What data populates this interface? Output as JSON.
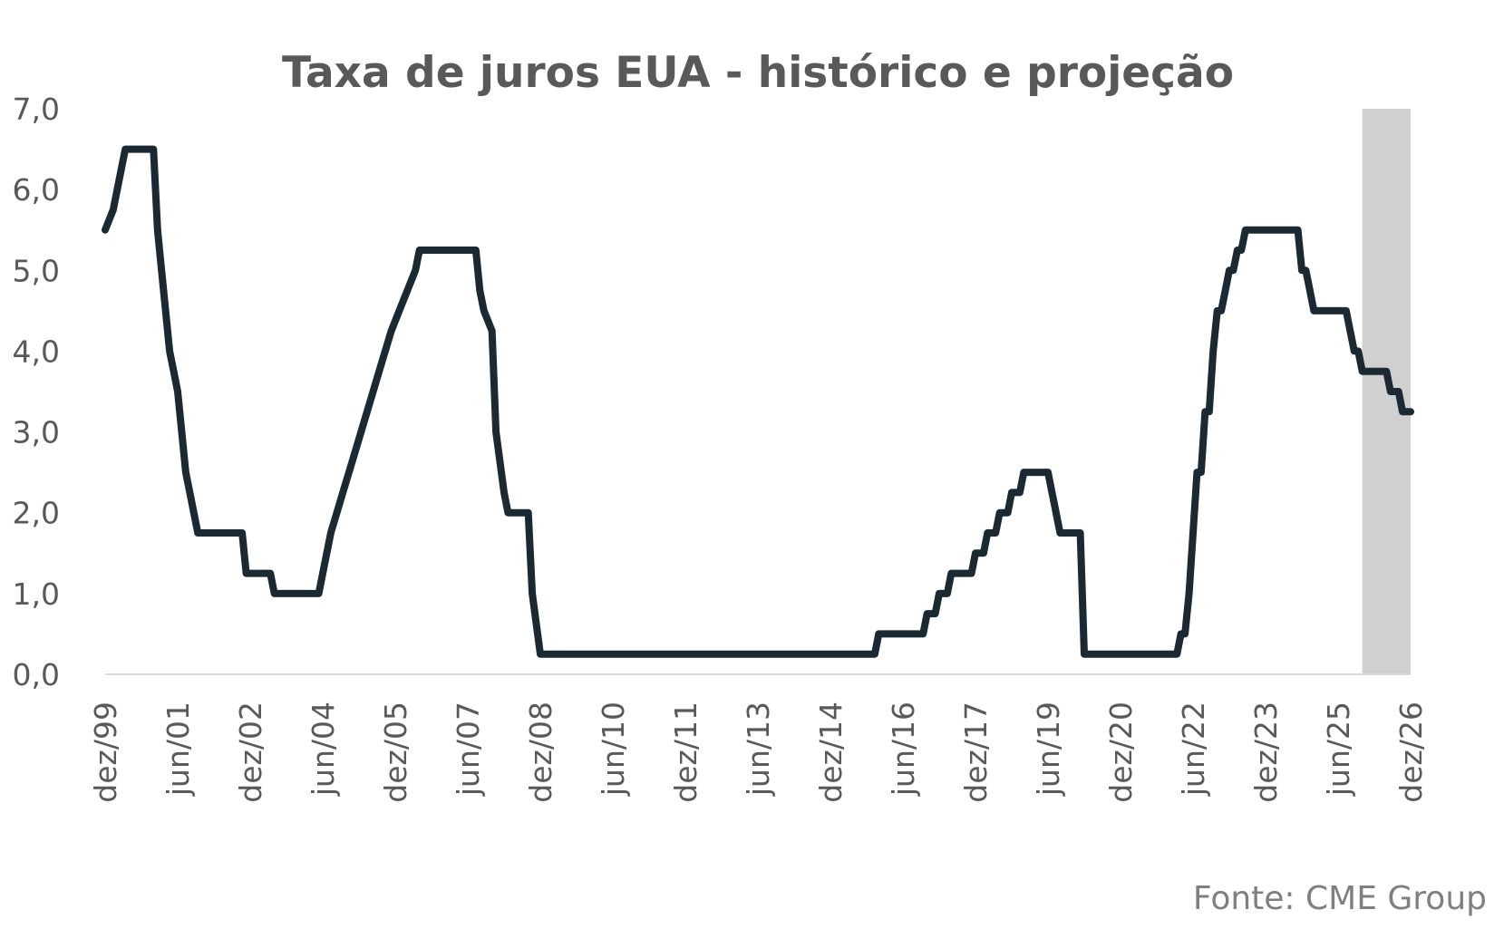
{
  "chart_data": {
    "type": "line",
    "title": "Taxa de juros EUA - histórico e projeção",
    "xlabel": "",
    "ylabel": "",
    "ylim": [
      0,
      7
    ],
    "yticks": [
      "0,0",
      "1,0",
      "2,0",
      "3,0",
      "4,0",
      "5,0",
      "6,0",
      "7,0"
    ],
    "xlim": [
      "1999-12",
      "2026-12"
    ],
    "xticks": [
      "dez/99",
      "jun/01",
      "dez/02",
      "jun/04",
      "dez/05",
      "jun/07",
      "dez/08",
      "jun/10",
      "dez/11",
      "jun/13",
      "dez/14",
      "jun/16",
      "dez/17",
      "jun/19",
      "dez/20",
      "jun/22",
      "dez/23",
      "jun/25",
      "dez/26"
    ],
    "projection_shading": {
      "start": "2025-12",
      "end": "2026-12",
      "color": "#d0d0d0"
    },
    "grid": false,
    "line_color": "#1a2932",
    "series": [
      {
        "points": [
          [
            "1999-12",
            5.5
          ],
          [
            "2000-02",
            5.75
          ],
          [
            "2000-03",
            6.0
          ],
          [
            "2000-05",
            6.5
          ],
          [
            "2000-12",
            6.5
          ],
          [
            "2001-01",
            5.5
          ],
          [
            "2001-02",
            5.0
          ],
          [
            "2001-04",
            4.0
          ],
          [
            "2001-05",
            3.75
          ],
          [
            "2001-06",
            3.5
          ],
          [
            "2001-08",
            2.5
          ],
          [
            "2001-10",
            2.0
          ],
          [
            "2001-11",
            1.75
          ],
          [
            "2002-10",
            1.75
          ],
          [
            "2002-11",
            1.25
          ],
          [
            "2003-05",
            1.25
          ],
          [
            "2003-06",
            1.0
          ],
          [
            "2004-05",
            1.0
          ],
          [
            "2004-06",
            1.25
          ],
          [
            "2004-08",
            1.75
          ],
          [
            "2004-11",
            2.25
          ],
          [
            "2005-02",
            2.75
          ],
          [
            "2005-05",
            3.25
          ],
          [
            "2005-08",
            3.75
          ],
          [
            "2005-11",
            4.25
          ],
          [
            "2006-01",
            4.5
          ],
          [
            "2006-03",
            4.75
          ],
          [
            "2006-05",
            5.0
          ],
          [
            "2006-06",
            5.25
          ],
          [
            "2007-08",
            5.25
          ],
          [
            "2007-09",
            4.75
          ],
          [
            "2007-10",
            4.5
          ],
          [
            "2007-12",
            4.25
          ],
          [
            "2008-01",
            3.0
          ],
          [
            "2008-03",
            2.25
          ],
          [
            "2008-04",
            2.0
          ],
          [
            "2008-09",
            2.0
          ],
          [
            "2008-10",
            1.0
          ],
          [
            "2008-12",
            0.25
          ],
          [
            "2015-11",
            0.25
          ],
          [
            "2015-12",
            0.5
          ],
          [
            "2016-11",
            0.5
          ],
          [
            "2016-12",
            0.75
          ],
          [
            "2017-02",
            0.75
          ],
          [
            "2017-03",
            1.0
          ],
          [
            "2017-05",
            1.0
          ],
          [
            "2017-06",
            1.25
          ],
          [
            "2017-11",
            1.25
          ],
          [
            "2017-12",
            1.5
          ],
          [
            "2018-02",
            1.5
          ],
          [
            "2018-03",
            1.75
          ],
          [
            "2018-05",
            1.75
          ],
          [
            "2018-06",
            2.0
          ],
          [
            "2018-08",
            2.0
          ],
          [
            "2018-09",
            2.25
          ],
          [
            "2018-11",
            2.25
          ],
          [
            "2018-12",
            2.5
          ],
          [
            "2019-06",
            2.5
          ],
          [
            "2019-07",
            2.25
          ],
          [
            "2019-08",
            2.0
          ],
          [
            "2019-09",
            1.75
          ],
          [
            "2020-02",
            1.75
          ],
          [
            "2020-03",
            0.25
          ],
          [
            "2022-02",
            0.25
          ],
          [
            "2022-03",
            0.5
          ],
          [
            "2022-04",
            0.5
          ],
          [
            "2022-05",
            1.0
          ],
          [
            "2022-06",
            1.75
          ],
          [
            "2022-07",
            2.5
          ],
          [
            "2022-08",
            2.5
          ],
          [
            "2022-09",
            3.25
          ],
          [
            "2022-10",
            3.25
          ],
          [
            "2022-11",
            4.0
          ],
          [
            "2022-12",
            4.5
          ],
          [
            "2023-01",
            4.5
          ],
          [
            "2023-02",
            4.75
          ],
          [
            "2023-03",
            5.0
          ],
          [
            "2023-04",
            5.0
          ],
          [
            "2023-05",
            5.25
          ],
          [
            "2023-06",
            5.25
          ],
          [
            "2023-07",
            5.5
          ],
          [
            "2024-08",
            5.5
          ],
          [
            "2024-09",
            5.0
          ],
          [
            "2024-10",
            5.0
          ],
          [
            "2024-11",
            4.75
          ],
          [
            "2024-12",
            4.5
          ],
          [
            "2025-08",
            4.5
          ],
          [
            "2025-09",
            4.25
          ],
          [
            "2025-10",
            4.0
          ],
          [
            "2025-11",
            4.0
          ],
          [
            "2025-12",
            3.75
          ],
          [
            "2026-06",
            3.75
          ],
          [
            "2026-07",
            3.5
          ],
          [
            "2026-09",
            3.5
          ],
          [
            "2026-10",
            3.25
          ],
          [
            "2026-12",
            3.25
          ]
        ]
      }
    ],
    "source": "Fonte: CME Group"
  }
}
